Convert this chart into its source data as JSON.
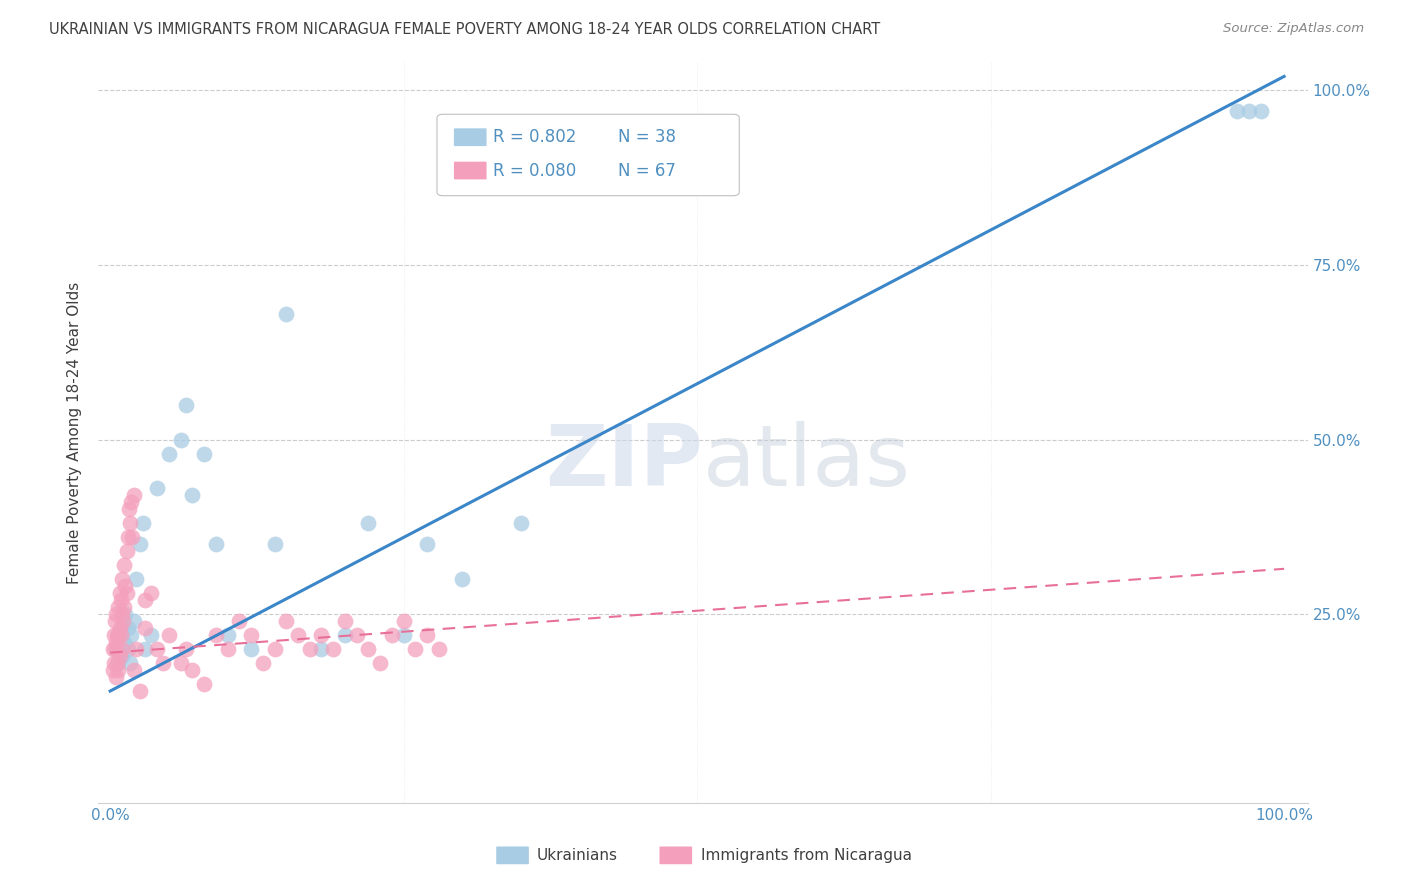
{
  "title": "UKRAINIAN VS IMMIGRANTS FROM NICARAGUA FEMALE POVERTY AMONG 18-24 YEAR OLDS CORRELATION CHART",
  "source": "Source: ZipAtlas.com",
  "ylabel": "Female Poverty Among 18-24 Year Olds",
  "watermark_zip": "ZIP",
  "watermark_atlas": "atlas",
  "xlim": [
    -0.01,
    1.02
  ],
  "ylim": [
    -0.02,
    1.04
  ],
  "x_ticks": [
    0.0,
    0.25,
    0.5,
    0.75,
    1.0
  ],
  "x_tick_labels": [
    "0.0%",
    "",
    "",
    "",
    "100.0%"
  ],
  "y_ticks": [
    0.25,
    0.5,
    0.75,
    1.0
  ],
  "y_tick_labels_right": [
    "25.0%",
    "50.0%",
    "75.0%",
    "100.0%"
  ],
  "legend_r1": "R = 0.802",
  "legend_n1": "N = 38",
  "legend_r2": "R = 0.080",
  "legend_n2": "N = 67",
  "legend_bottom_1": "Ukrainians",
  "legend_bottom_2": "Immigrants from Nicaragua",
  "ukr_color": "#a8cce4",
  "nic_color": "#f4a0bc",
  "trend_blue": "#3a86c8",
  "trend_pink": "#e87098",
  "grid_color": "#cccccc",
  "title_color": "#404040",
  "source_color": "#888888",
  "axis_label_color": "#5090c0",
  "ukr_trend_x0": 0.0,
  "ukr_trend_y0": 0.14,
  "ukr_trend_x1": 1.0,
  "ukr_trend_y1": 1.02,
  "nic_trend_x0": 0.0,
  "nic_trend_y0": 0.195,
  "nic_trend_x1": 1.0,
  "nic_trend_y1": 0.315,
  "ukr_x": [
    0.005,
    0.007,
    0.008,
    0.01,
    0.01,
    0.012,
    0.013,
    0.015,
    0.015,
    0.017,
    0.018,
    0.02,
    0.022,
    0.025,
    0.028,
    0.03,
    0.035,
    0.04,
    0.05,
    0.06,
    0.065,
    0.07,
    0.08,
    0.09,
    0.1,
    0.12,
    0.14,
    0.15,
    0.18,
    0.2,
    0.22,
    0.25,
    0.27,
    0.3,
    0.35,
    0.96,
    0.97,
    0.98
  ],
  "ukr_y": [
    0.2,
    0.18,
    0.22,
    0.19,
    0.23,
    0.21,
    0.25,
    0.2,
    0.23,
    0.18,
    0.22,
    0.24,
    0.3,
    0.35,
    0.38,
    0.2,
    0.22,
    0.43,
    0.48,
    0.5,
    0.55,
    0.42,
    0.48,
    0.35,
    0.22,
    0.2,
    0.35,
    0.68,
    0.2,
    0.22,
    0.38,
    0.22,
    0.35,
    0.3,
    0.38,
    0.97,
    0.97,
    0.97
  ],
  "nic_x": [
    0.002,
    0.002,
    0.003,
    0.003,
    0.004,
    0.004,
    0.005,
    0.005,
    0.005,
    0.006,
    0.006,
    0.007,
    0.007,
    0.007,
    0.008,
    0.008,
    0.008,
    0.009,
    0.009,
    0.01,
    0.01,
    0.01,
    0.011,
    0.012,
    0.012,
    0.013,
    0.014,
    0.014,
    0.015,
    0.016,
    0.017,
    0.018,
    0.019,
    0.02,
    0.02,
    0.022,
    0.025,
    0.03,
    0.03,
    0.035,
    0.04,
    0.045,
    0.05,
    0.06,
    0.065,
    0.07,
    0.08,
    0.09,
    0.1,
    0.11,
    0.12,
    0.13,
    0.14,
    0.15,
    0.16,
    0.17,
    0.18,
    0.19,
    0.2,
    0.21,
    0.22,
    0.23,
    0.24,
    0.25,
    0.26,
    0.27,
    0.28
  ],
  "nic_y": [
    0.2,
    0.17,
    0.22,
    0.18,
    0.24,
    0.2,
    0.25,
    0.21,
    0.16,
    0.22,
    0.18,
    0.26,
    0.22,
    0.17,
    0.28,
    0.23,
    0.19,
    0.27,
    0.22,
    0.3,
    0.25,
    0.2,
    0.24,
    0.32,
    0.26,
    0.29,
    0.34,
    0.28,
    0.36,
    0.4,
    0.38,
    0.41,
    0.36,
    0.42,
    0.17,
    0.2,
    0.14,
    0.27,
    0.23,
    0.28,
    0.2,
    0.18,
    0.22,
    0.18,
    0.2,
    0.17,
    0.15,
    0.22,
    0.2,
    0.24,
    0.22,
    0.18,
    0.2,
    0.24,
    0.22,
    0.2,
    0.22,
    0.2,
    0.24,
    0.22,
    0.2,
    0.18,
    0.22,
    0.24,
    0.2,
    0.22,
    0.2
  ],
  "background": "#ffffff"
}
